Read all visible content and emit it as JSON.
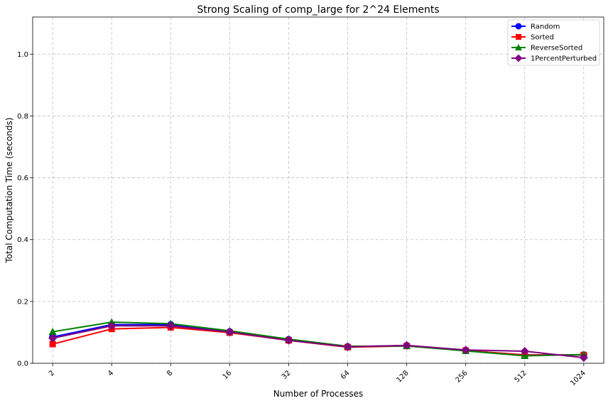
{
  "chart_data": {
    "type": "line",
    "title": "Strong Scaling of comp_large for 2^24 Elements",
    "xlabel": "Number of Processes",
    "ylabel": "Total Computation Time (seconds)",
    "x": [
      "2",
      "4",
      "8",
      "16",
      "32",
      "64",
      "128",
      "256",
      "512",
      "1024"
    ],
    "ylim": [
      0,
      1.12
    ],
    "yticks": [
      "0.0",
      "0.2",
      "0.4",
      "0.6",
      "0.8",
      "1.0"
    ],
    "grid": true,
    "legend_position": "top-right",
    "series": [
      {
        "name": "Random",
        "color": "#0000ff",
        "marker": "circle",
        "values": [
          0.085,
          0.125,
          0.125,
          0.102,
          0.077,
          0.054,
          0.057,
          0.041,
          0.027,
          0.027
        ]
      },
      {
        "name": "Sorted",
        "color": "#ff0000",
        "marker": "square",
        "values": [
          0.062,
          0.111,
          0.116,
          0.099,
          0.074,
          0.052,
          0.056,
          0.041,
          0.027,
          0.027
        ]
      },
      {
        "name": "ReverseSorted",
        "color": "#008000",
        "marker": "triangle",
        "values": [
          0.102,
          0.133,
          0.128,
          0.105,
          0.078,
          0.055,
          0.056,
          0.04,
          0.024,
          0.028
        ]
      },
      {
        "name": "1PercentPerturbed",
        "color": "#800080",
        "marker": "diamond",
        "values": [
          0.081,
          0.121,
          0.121,
          0.101,
          0.074,
          0.053,
          0.058,
          0.043,
          0.039,
          0.018
        ]
      }
    ]
  }
}
